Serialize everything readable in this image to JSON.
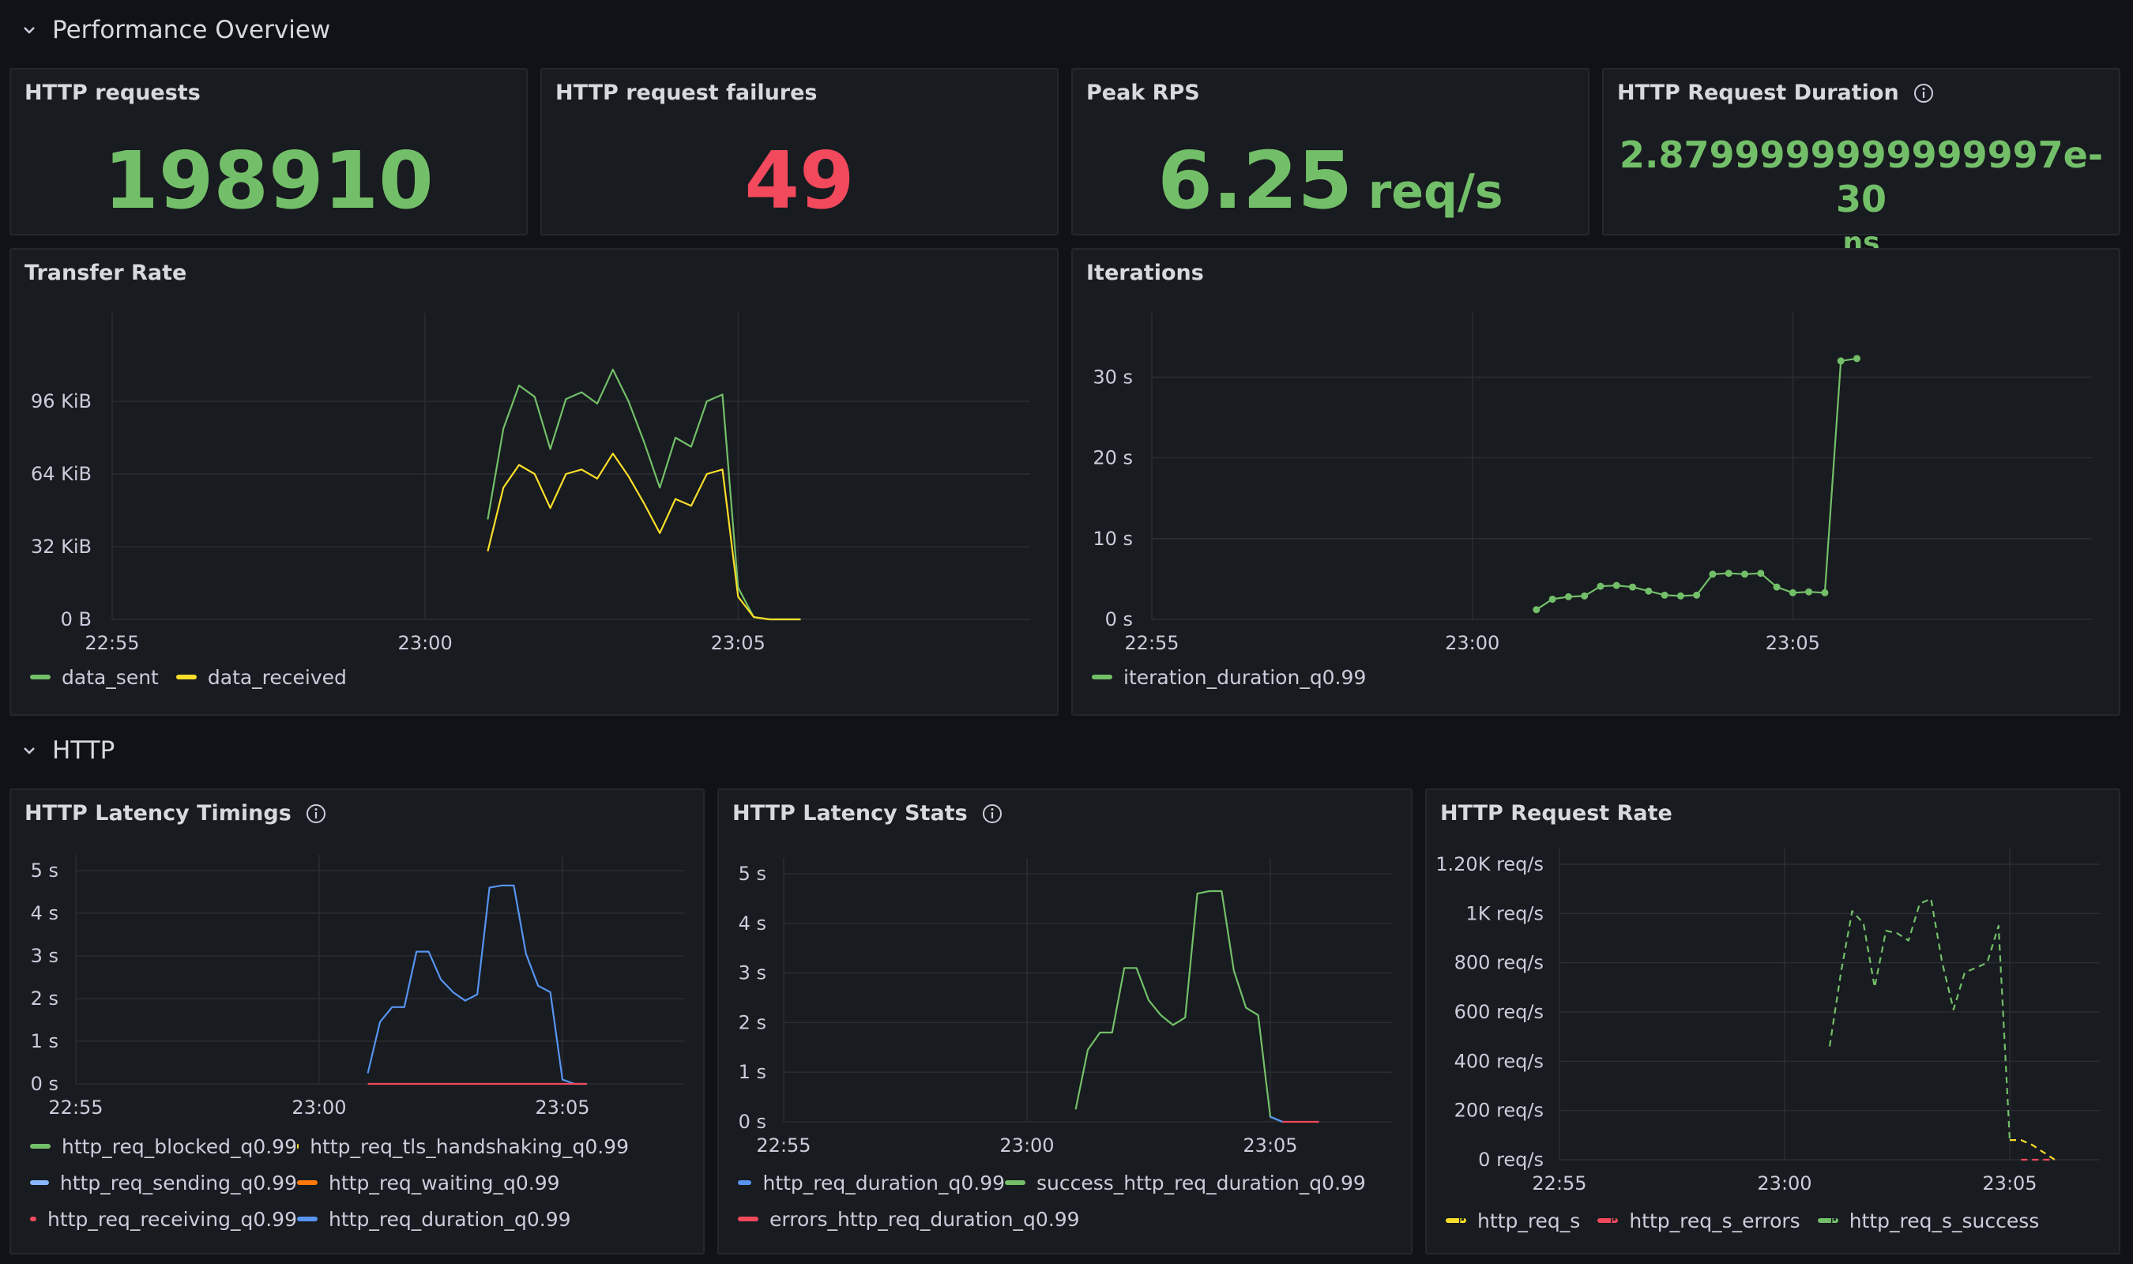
{
  "rows": [
    {
      "title": "Performance Overview"
    },
    {
      "title": "HTTP"
    }
  ],
  "stats": [
    {
      "title": "HTTP requests",
      "value": "198910",
      "unit": "",
      "color": "#73bf69"
    },
    {
      "title": "HTTP request failures",
      "value": "49",
      "unit": "",
      "color": "#f2495c"
    },
    {
      "title": "Peak RPS",
      "value": "6.25",
      "unit": "req/s",
      "color": "#73bf69"
    },
    {
      "title": "HTTP Request Duration",
      "value": "2.8799999999999997e-30",
      "unit": "ns",
      "color": "#73bf69"
    }
  ],
  "panels": {
    "transfer": {
      "title": "Transfer Rate",
      "legend": [
        {
          "name": "data_sent",
          "color": "#73bf69"
        },
        {
          "name": "data_received",
          "color": "#fade2a"
        }
      ]
    },
    "iterations": {
      "title": "Iterations",
      "legend": [
        {
          "name": "iteration_duration_q0.99",
          "color": "#73bf69"
        }
      ]
    },
    "latency_timings": {
      "title": "HTTP Latency Timings",
      "legend": [
        {
          "name": "http_req_blocked_q0.99",
          "color": "#73bf69"
        },
        {
          "name": "http_req_tls_handshaking_q0.99",
          "color": "#fade2a"
        },
        {
          "name": "http_req_sending_q0.99",
          "color": "#8ab8ff"
        },
        {
          "name": "http_req_waiting_q0.99",
          "color": "#ff780a"
        },
        {
          "name": "http_req_receiving_q0.99",
          "color": "#f2495c"
        },
        {
          "name": "http_req_duration_q0.99",
          "color": "#5794f2"
        }
      ]
    },
    "latency_stats": {
      "title": "HTTP Latency Stats",
      "legend": [
        {
          "name": "http_req_duration_q0.99",
          "color": "#5794f2"
        },
        {
          "name": "success_http_req_duration_q0.99",
          "color": "#73bf69"
        },
        {
          "name": "errors_http_req_duration_q0.99",
          "color": "#f2495c"
        }
      ]
    },
    "request_rate": {
      "title": "HTTP Request Rate",
      "legend": [
        {
          "name": "http_req_s",
          "color": "#fade2a"
        },
        {
          "name": "http_req_s_errors",
          "color": "#f2495c"
        },
        {
          "name": "http_req_s_success",
          "color": "#73bf69"
        }
      ]
    }
  },
  "chart_data": [
    {
      "id": "transfer",
      "type": "line",
      "x_ticks": [
        "22:55",
        "23:00",
        "23:05"
      ],
      "y_ticks": [
        "0 B",
        "32 KiB",
        "64 KiB",
        "96 KiB"
      ],
      "ylim": [
        0,
        128
      ],
      "series": [
        {
          "name": "data_sent",
          "color": "#73bf69",
          "x": [
            "23:01:00",
            "23:01:15",
            "23:01:30",
            "23:01:45",
            "23:02:00",
            "23:02:15",
            "23:02:30",
            "23:02:45",
            "23:03:00",
            "23:03:15",
            "23:03:30",
            "23:03:45",
            "23:04:00",
            "23:04:15",
            "23:04:30",
            "23:04:45",
            "23:05:00",
            "23:05:15",
            "23:05:30",
            "23:06:00"
          ],
          "y": [
            44,
            84,
            103,
            98,
            75,
            97,
            100,
            95,
            110,
            96,
            78,
            58,
            80,
            76,
            96,
            99,
            14,
            1,
            0,
            0
          ]
        },
        {
          "name": "data_received",
          "color": "#fade2a",
          "x": [
            "23:01:00",
            "23:01:15",
            "23:01:30",
            "23:01:45",
            "23:02:00",
            "23:02:15",
            "23:02:30",
            "23:02:45",
            "23:03:00",
            "23:03:15",
            "23:03:30",
            "23:03:45",
            "23:04:00",
            "23:04:15",
            "23:04:30",
            "23:04:45",
            "23:05:00",
            "23:05:15",
            "23:05:30",
            "23:06:00"
          ],
          "y": [
            30,
            58,
            68,
            64,
            49,
            64,
            66,
            62,
            73,
            63,
            51,
            38,
            53,
            50,
            64,
            66,
            10,
            1,
            0,
            0
          ]
        }
      ]
    },
    {
      "id": "iterations",
      "type": "line",
      "x_ticks": [
        "22:55",
        "23:00",
        "23:05"
      ],
      "y_ticks": [
        "0 s",
        "10 s",
        "20 s",
        "30 s"
      ],
      "ylim": [
        0,
        36
      ],
      "series": [
        {
          "name": "iteration_duration_q0.99",
          "color": "#73bf69",
          "points": true,
          "x": [
            "23:01:00",
            "23:01:15",
            "23:01:30",
            "23:01:45",
            "23:02:00",
            "23:02:15",
            "23:02:30",
            "23:02:45",
            "23:03:00",
            "23:03:15",
            "23:03:30",
            "23:03:45",
            "23:04:00",
            "23:04:15",
            "23:04:30",
            "23:04:45",
            "23:05:00",
            "23:05:15",
            "23:05:30",
            "23:05:45",
            "23:06:00"
          ],
          "y": [
            1.2,
            2.5,
            2.8,
            2.9,
            4.1,
            4.2,
            4.0,
            3.5,
            3.0,
            2.9,
            3.0,
            5.6,
            5.7,
            5.6,
            5.7,
            4.0,
            3.3,
            3.4,
            3.3,
            32,
            32.3
          ]
        }
      ]
    },
    {
      "id": "latency_timings",
      "type": "line",
      "x_ticks": [
        "22:55",
        "23:00",
        "23:05"
      ],
      "y_ticks": [
        "0 s",
        "1 s",
        "2 s",
        "3 s",
        "4 s",
        "5 s"
      ],
      "ylim": [
        0,
        5
      ],
      "series": [
        {
          "name": "http_req_duration_q0.99",
          "color": "#5794f2",
          "x": [
            "23:01:00",
            "23:01:15",
            "23:01:30",
            "23:01:45",
            "23:02:00",
            "23:02:15",
            "23:02:30",
            "23:02:45",
            "23:03:00",
            "23:03:15",
            "23:03:30",
            "23:03:45",
            "23:04:00",
            "23:04:15",
            "23:04:30",
            "23:04:45",
            "23:05:00",
            "23:05:15",
            "23:05:30"
          ],
          "y": [
            0.25,
            1.45,
            1.8,
            1.8,
            3.1,
            3.1,
            2.45,
            2.15,
            1.95,
            2.1,
            4.6,
            4.65,
            4.65,
            3.05,
            2.3,
            2.15,
            0.1,
            0.0,
            0.0
          ]
        },
        {
          "name": "http_req_receiving_q0.99",
          "color": "#f2495c",
          "x": [
            "23:01:00",
            "23:05:30"
          ],
          "y": [
            0.0,
            0.0
          ]
        }
      ]
    },
    {
      "id": "latency_stats",
      "type": "line",
      "x_ticks": [
        "22:55",
        "23:00",
        "23:05"
      ],
      "y_ticks": [
        "0 s",
        "1 s",
        "2 s",
        "3 s",
        "4 s",
        "5 s"
      ],
      "ylim": [
        0,
        5
      ],
      "series": [
        {
          "name": "success_http_req_duration_q0.99",
          "color": "#73bf69",
          "x": [
            "23:01:00",
            "23:01:15",
            "23:01:30",
            "23:01:45",
            "23:02:00",
            "23:02:15",
            "23:02:30",
            "23:02:45",
            "23:03:00",
            "23:03:15",
            "23:03:30",
            "23:03:45",
            "23:04:00",
            "23:04:15",
            "23:04:30",
            "23:04:45",
            "23:05:00",
            "23:05:15"
          ],
          "y": [
            0.25,
            1.45,
            1.8,
            1.8,
            3.1,
            3.1,
            2.45,
            2.15,
            1.95,
            2.1,
            4.6,
            4.65,
            4.65,
            3.05,
            2.3,
            2.15,
            0.1,
            0.0
          ]
        },
        {
          "name": "http_req_duration_q0.99",
          "color": "#5794f2",
          "x": [
            "23:05:00",
            "23:05:15"
          ],
          "y": [
            0.1,
            0.0
          ]
        },
        {
          "name": "errors_http_req_duration_q0.99",
          "color": "#f2495c",
          "x": [
            "23:05:15",
            "23:06:00"
          ],
          "y": [
            0.0,
            0.0
          ]
        }
      ]
    },
    {
      "id": "request_rate",
      "type": "line",
      "x_ticks": [
        "22:55",
        "23:00",
        "23:05"
      ],
      "y_ticks": [
        "0 req/s",
        "200 req/s",
        "400 req/s",
        "600 req/s",
        "800 req/s",
        "1K req/s",
        "1.20K req/s"
      ],
      "ylim": [
        0,
        1200
      ],
      "series": [
        {
          "name": "http_req_s_success",
          "color": "#73bf69",
          "dashed": true,
          "x": [
            "23:01:00",
            "23:01:15",
            "23:01:30",
            "23:01:45",
            "23:02:00",
            "23:02:15",
            "23:02:30",
            "23:02:45",
            "23:03:00",
            "23:03:15",
            "23:03:30",
            "23:03:45",
            "23:04:00",
            "23:04:15",
            "23:04:30",
            "23:04:45",
            "23:05:00"
          ],
          "y": [
            460,
            760,
            1010,
            960,
            700,
            930,
            920,
            890,
            1040,
            1060,
            800,
            610,
            760,
            780,
            800,
            950,
            80
          ]
        },
        {
          "name": "http_req_s",
          "color": "#fade2a",
          "dashed": true,
          "x": [
            "23:05:00",
            "23:05:15",
            "23:05:30",
            "23:06:00"
          ],
          "y": [
            80,
            80,
            60,
            0
          ]
        },
        {
          "name": "http_req_s_errors",
          "color": "#f2495c",
          "dashed": true,
          "x": [
            "23:05:15",
            "23:06:00"
          ],
          "y": [
            0,
            0
          ]
        }
      ]
    }
  ]
}
